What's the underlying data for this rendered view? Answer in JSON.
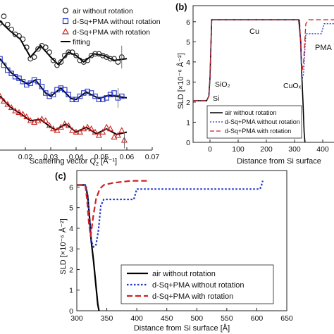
{
  "chart_data": [
    {
      "panel": "",
      "type": "scatter",
      "xlabel": "Scattering vector Q",
      "xlabel_sub": "z",
      "xlabel_unit": " [Å⁻¹]",
      "xlim": [
        0.01,
        0.07
      ],
      "xticks": [
        "0.02",
        "0.03",
        "0.04",
        "0.05",
        "0.06",
        "0.07"
      ],
      "ylabel": "",
      "legend_position": "top-right",
      "series": [
        {
          "name": "air without rotation",
          "marker": "circle",
          "color": "#222222",
          "offset": 0,
          "points": [
            [
              0.01,
              3.3
            ],
            [
              0.0115,
              3.5
            ],
            [
              0.013,
              3.25
            ],
            [
              0.0145,
              3.1
            ],
            [
              0.016,
              2.95
            ],
            [
              0.0175,
              2.9
            ],
            [
              0.019,
              2.8
            ],
            [
              0.0205,
              2.55
            ],
            [
              0.022,
              2.2
            ],
            [
              0.0235,
              2.25
            ],
            [
              0.025,
              2.5
            ],
            [
              0.0265,
              2.6
            ],
            [
              0.028,
              2.55
            ],
            [
              0.0295,
              2.4
            ],
            [
              0.031,
              2.15
            ],
            [
              0.0325,
              2.0
            ],
            [
              0.034,
              2.1
            ],
            [
              0.0355,
              2.3
            ],
            [
              0.037,
              2.4
            ],
            [
              0.0385,
              2.4
            ],
            [
              0.04,
              2.3
            ],
            [
              0.0415,
              2.15
            ],
            [
              0.043,
              2.1
            ],
            [
              0.0445,
              2.15
            ],
            [
              0.046,
              2.3
            ],
            [
              0.0475,
              2.35
            ],
            [
              0.049,
              2.35
            ],
            [
              0.0505,
              2.3
            ],
            [
              0.052,
              2.25
            ],
            [
              0.0535,
              2.2
            ],
            [
              0.055,
              2.2
            ],
            [
              0.0565,
              2.1
            ],
            [
              0.058,
              2.25
            ]
          ]
        },
        {
          "name": "d-Sq+PMA without rotation",
          "marker": "square",
          "color": "#2233cc",
          "offset": 0,
          "points": [
            [
              0.01,
              2.2
            ],
            [
              0.0115,
              2.0
            ],
            [
              0.013,
              1.85
            ],
            [
              0.0145,
              1.75
            ],
            [
              0.016,
              1.65
            ],
            [
              0.0175,
              1.6
            ],
            [
              0.019,
              1.5
            ],
            [
              0.0205,
              1.4
            ],
            [
              0.022,
              1.45
            ],
            [
              0.0235,
              1.55
            ],
            [
              0.025,
              1.5
            ],
            [
              0.0265,
              1.35
            ],
            [
              0.028,
              1.15
            ],
            [
              0.0295,
              1.05
            ],
            [
              0.031,
              1.1
            ],
            [
              0.0325,
              1.25
            ],
            [
              0.034,
              1.3
            ],
            [
              0.0355,
              1.25
            ],
            [
              0.037,
              1.1
            ],
            [
              0.0385,
              0.95
            ],
            [
              0.04,
              0.95
            ],
            [
              0.0415,
              1.05
            ],
            [
              0.043,
              1.15
            ],
            [
              0.0445,
              1.2
            ],
            [
              0.046,
              1.15
            ],
            [
              0.0475,
              1.05
            ],
            [
              0.049,
              0.95
            ],
            [
              0.0505,
              0.95
            ],
            [
              0.052,
              1.0
            ],
            [
              0.0535,
              1.1
            ],
            [
              0.055,
              1.15
            ],
            [
              0.0565,
              1.0
            ],
            [
              0.058,
              1.05
            ]
          ]
        },
        {
          "name": "d-Sq+PMA with rotation",
          "marker": "triangle",
          "color": "#cc2222",
          "offset": 0,
          "points": [
            [
              0.01,
              1.05
            ],
            [
              0.0115,
              0.9
            ],
            [
              0.013,
              0.8
            ],
            [
              0.0145,
              0.7
            ],
            [
              0.016,
              0.6
            ],
            [
              0.0175,
              0.55
            ],
            [
              0.019,
              0.5
            ],
            [
              0.0205,
              0.42
            ],
            [
              0.022,
              0.3
            ],
            [
              0.0235,
              0.25
            ],
            [
              0.025,
              0.3
            ],
            [
              0.0265,
              0.35
            ],
            [
              0.028,
              0.3
            ],
            [
              0.0295,
              0.15
            ],
            [
              0.031,
              0.05
            ],
            [
              0.0325,
              0.0
            ],
            [
              0.034,
              0.1
            ],
            [
              0.0355,
              0.2
            ],
            [
              0.037,
              0.15
            ],
            [
              0.0385,
              0.0
            ],
            [
              0.04,
              -0.05
            ],
            [
              0.0415,
              -0.05
            ],
            [
              0.043,
              0.05
            ],
            [
              0.0445,
              0.1
            ],
            [
              0.046,
              0.05
            ],
            [
              0.0475,
              -0.05
            ],
            [
              0.049,
              -0.15
            ],
            [
              0.0505,
              -0.05
            ],
            [
              0.052,
              0.1
            ],
            [
              0.0535,
              0.05
            ],
            [
              0.055,
              -0.2
            ],
            [
              0.0565,
              -0.15
            ],
            [
              0.058,
              0.0
            ],
            [
              0.059,
              -0.3
            ]
          ]
        },
        {
          "name": "fitting",
          "marker": "line",
          "color": "#000000",
          "curves": [
            [
              [
                0.01,
                3.35
              ],
              [
                0.014,
                3.05
              ],
              [
                0.018,
                2.8
              ],
              [
                0.022,
                2.25
              ],
              [
                0.026,
                2.6
              ],
              [
                0.03,
                2.25
              ],
              [
                0.033,
                2.02
              ],
              [
                0.037,
                2.4
              ],
              [
                0.04,
                2.3
              ],
              [
                0.043,
                2.1
              ],
              [
                0.047,
                2.35
              ],
              [
                0.051,
                2.3
              ],
              [
                0.055,
                2.15
              ],
              [
                0.06,
                2.2
              ]
            ],
            [
              [
                0.01,
                2.2
              ],
              [
                0.014,
                1.8
              ],
              [
                0.018,
                1.55
              ],
              [
                0.021,
                1.42
              ],
              [
                0.024,
                1.55
              ],
              [
                0.028,
                1.15
              ],
              [
                0.03,
                1.05
              ],
              [
                0.034,
                1.3
              ],
              [
                0.038,
                0.98
              ],
              [
                0.04,
                0.95
              ],
              [
                0.044,
                1.18
              ],
              [
                0.049,
                0.98
              ],
              [
                0.053,
                1.08
              ],
              [
                0.06,
                1.0
              ]
            ],
            [
              [
                0.01,
                1.05
              ],
              [
                0.014,
                0.72
              ],
              [
                0.018,
                0.52
              ],
              [
                0.022,
                0.3
              ],
              [
                0.026,
                0.34
              ],
              [
                0.03,
                0.1
              ],
              [
                0.032,
                0.02
              ],
              [
                0.036,
                0.2
              ],
              [
                0.04,
                -0.05
              ],
              [
                0.044,
                0.1
              ],
              [
                0.048,
                -0.1
              ],
              [
                0.052,
                0.05
              ],
              [
                0.056,
                -0.12
              ],
              [
                0.06,
                -0.05
              ]
            ]
          ]
        }
      ]
    },
    {
      "panel": "(b)",
      "type": "line",
      "xlabel": "Distance from Si surface",
      "ylabel": "SLD [×10⁻⁶ Å⁻²]",
      "xlim": [
        -60,
        440
      ],
      "ylim": [
        0,
        6.8
      ],
      "xticks": [
        0,
        100,
        200,
        300,
        400
      ],
      "yticks": [
        0,
        1,
        2,
        3,
        4,
        5,
        6
      ],
      "legend_position": "bottom-center",
      "annotations": [
        "Cu",
        "SiO₂",
        "Si",
        "CuOₓ",
        "PMA"
      ],
      "series": [
        {
          "name": "air without rotation",
          "style": "solid",
          "color": "#000000",
          "points": [
            [
              -60,
              2.07
            ],
            [
              -12,
              2.07
            ],
            [
              -4,
              2.3
            ],
            [
              0,
              3.2
            ],
            [
              6,
              6.1
            ],
            [
              315,
              6.1
            ],
            [
              322,
              5.0
            ],
            [
              325,
              3.6
            ],
            [
              330,
              2.0
            ],
            [
              334,
              0.5
            ],
            [
              337,
              0
            ]
          ]
        },
        {
          "name": "d-Sq+PMA without rotation",
          "style": "dotted",
          "color": "#2233cc",
          "points": [
            [
              -60,
              2.07
            ],
            [
              -12,
              2.07
            ],
            [
              -4,
              2.3
            ],
            [
              0,
              3.2
            ],
            [
              6,
              6.1
            ],
            [
              318,
              6.1
            ],
            [
              322,
              4.5
            ],
            [
              326,
              3.1
            ],
            [
              332,
              3.4
            ],
            [
              340,
              5.4
            ],
            [
              395,
              5.4
            ],
            [
              405,
              5.9
            ],
            [
              440,
              5.9
            ]
          ]
        },
        {
          "name": "d-Sq+PMA with rotation",
          "style": "dashed",
          "color": "#cc2222",
          "points": [
            [
              -60,
              2.07
            ],
            [
              -12,
              2.07
            ],
            [
              -4,
              2.3
            ],
            [
              0,
              3.2
            ],
            [
              6,
              6.1
            ],
            [
              318,
              6.1
            ],
            [
              322,
              4.8
            ],
            [
              326,
              3.5
            ],
            [
              332,
              4.0
            ],
            [
              340,
              5.9
            ],
            [
              350,
              6.1
            ],
            [
              420,
              6.1
            ],
            [
              440,
              6.1
            ]
          ]
        }
      ]
    },
    {
      "panel": "(c)",
      "type": "line",
      "xlabel": "Distance from Si surface [Å]",
      "ylabel": "SLD [×10⁻⁶ Å⁻²]",
      "xlim": [
        300,
        650
      ],
      "ylim": [
        0,
        6.8
      ],
      "xticks": [
        300,
        350,
        400,
        450,
        500,
        550,
        600,
        650
      ],
      "yticks": [
        0,
        1,
        2,
        3,
        4,
        5,
        6
      ],
      "legend_position": "bottom-right",
      "series": [
        {
          "name": "air without rotation",
          "style": "solid",
          "color": "#000000",
          "points": [
            [
              300,
              6.1
            ],
            [
              314,
              6.1
            ],
            [
              318,
              5.6
            ],
            [
              321,
              4.6
            ],
            [
              324,
              3.4
            ],
            [
              328,
              2.4
            ],
            [
              332,
              1.2
            ],
            [
              335,
              0.3
            ],
            [
              337,
              0
            ]
          ]
        },
        {
          "name": "d-Sq+PMA without rotation",
          "style": "dotted",
          "color": "#2233cc",
          "points": [
            [
              300,
              6.1
            ],
            [
              315,
              6.1
            ],
            [
              318,
              5.6
            ],
            [
              321,
              4.5
            ],
            [
              324,
              3.4
            ],
            [
              328,
              3.1
            ],
            [
              332,
              3.2
            ],
            [
              336,
              3.9
            ],
            [
              340,
              5.1
            ],
            [
              345,
              5.4
            ],
            [
              395,
              5.4
            ],
            [
              400,
              5.9
            ],
            [
              605,
              5.9
            ],
            [
              607,
              6.0
            ],
            [
              610,
              6.3
            ]
          ]
        },
        {
          "name": "d-Sq+PMA with rotation",
          "style": "dashed",
          "color": "#cc2222",
          "points": [
            [
              300,
              6.1
            ],
            [
              314,
              6.1
            ],
            [
              317,
              5.4
            ],
            [
              320,
              4.3
            ],
            [
              323,
              3.6
            ],
            [
              327,
              4.5
            ],
            [
              332,
              5.4
            ],
            [
              338,
              5.9
            ],
            [
              345,
              6.1
            ],
            [
              360,
              6.2
            ],
            [
              390,
              6.3
            ],
            [
              420,
              6.3
            ]
          ]
        }
      ]
    }
  ]
}
